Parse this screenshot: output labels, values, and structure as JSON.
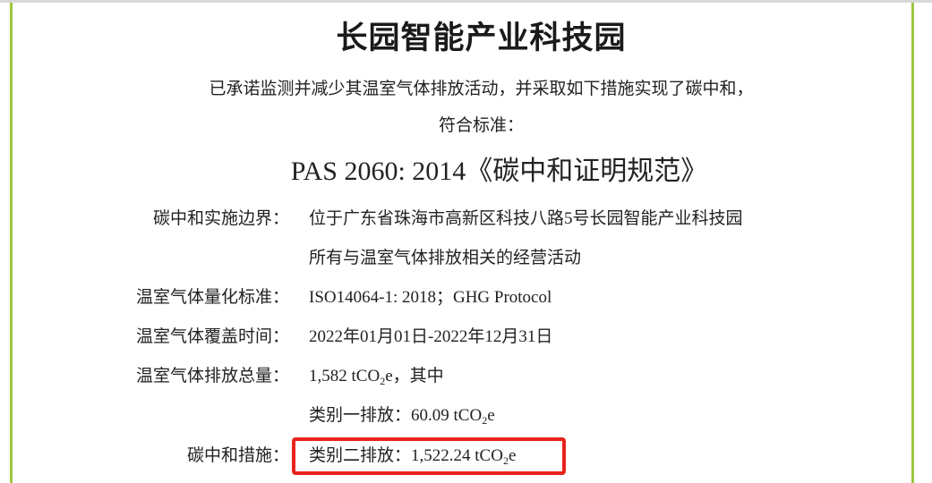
{
  "title": "长园智能产业科技园",
  "statement_line1": "已承诺监测并减少其温室气体排放活动，并采取如下措施实现了碳中和，",
  "statement_line2": "符合标准：",
  "standard": "PAS 2060: 2014《碳中和证明规范》",
  "rows": [
    {
      "label": "碳中和实施边界：",
      "value": "位于广东省珠海市高新区科技八路5号长园智能产业科技园"
    },
    {
      "label": "",
      "value": "所有与温室气体排放相关的经营活动"
    },
    {
      "label": "温室气体量化标准：",
      "value": "ISO14064-1: 2018；GHG Protocol"
    },
    {
      "label": "温室气体覆盖时间：",
      "value": "2022年01月01日-2022年12月31日"
    },
    {
      "label": "温室气体排放总量：",
      "value_pre": "1,582 tCO",
      "value_sub": "2",
      "value_post": "e，其中"
    },
    {
      "label": "",
      "value_pre": "类别一排放：60.09 tCO",
      "value_sub": "2",
      "value_post": "e"
    },
    {
      "label": "碳中和措施：",
      "value_pre": "类别二排放：1,522.24 tCO",
      "value_sub": "2",
      "value_post": "e"
    }
  ],
  "colors": {
    "border_accent": "#9ec741",
    "highlight": "#e8231c"
  }
}
